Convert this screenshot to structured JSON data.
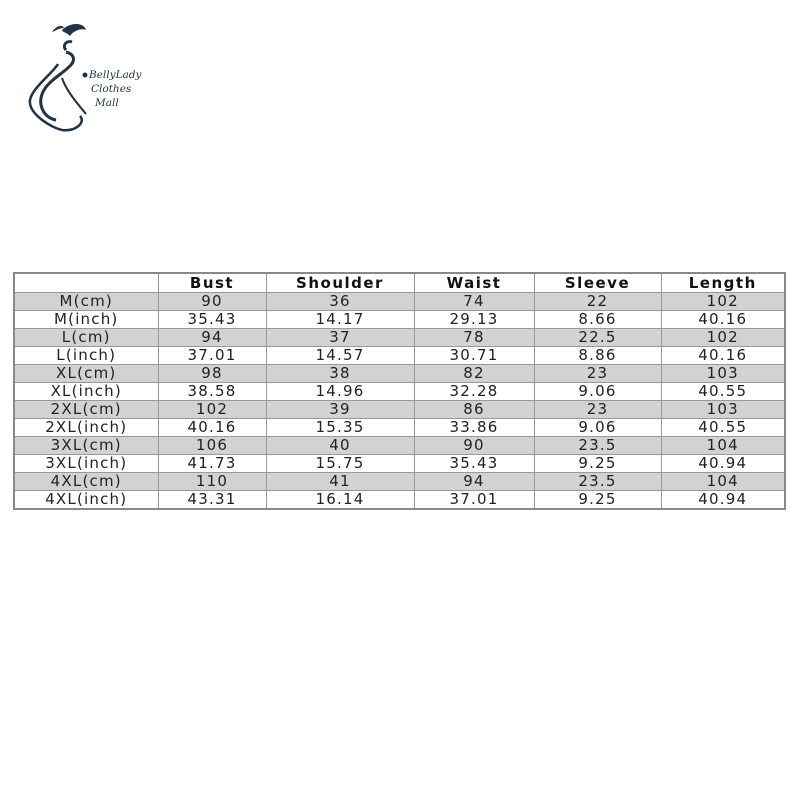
{
  "logo": {
    "line1": "BellyLady",
    "line2": "Clothes",
    "line3": "Mall",
    "color": "#1f3345"
  },
  "table": {
    "headers": [
      "",
      "Bust",
      "Shoulder",
      "Waist",
      "Sleeve",
      "Length"
    ],
    "rows": [
      [
        "M(cm)",
        "90",
        "36",
        "74",
        "22",
        "102"
      ],
      [
        "M(inch)",
        "35.43",
        "14.17",
        "29.13",
        "8.66",
        "40.16"
      ],
      [
        "L(cm)",
        "94",
        "37",
        "78",
        "22.5",
        "102"
      ],
      [
        "L(inch)",
        "37.01",
        "14.57",
        "30.71",
        "8.86",
        "40.16"
      ],
      [
        "XL(cm)",
        "98",
        "38",
        "82",
        "23",
        "103"
      ],
      [
        "XL(inch)",
        "38.58",
        "14.96",
        "32.28",
        "9.06",
        "40.55"
      ],
      [
        "2XL(cm)",
        "102",
        "39",
        "86",
        "23",
        "103"
      ],
      [
        "2XL(inch)",
        "40.16",
        "15.35",
        "33.86",
        "9.06",
        "40.55"
      ],
      [
        "3XL(cm)",
        "106",
        "40",
        "90",
        "23.5",
        "104"
      ],
      [
        "3XL(inch)",
        "41.73",
        "15.75",
        "35.43",
        "9.25",
        "40.94"
      ],
      [
        "4XL(cm)",
        "110",
        "41",
        "94",
        "23.5",
        "104"
      ],
      [
        "4XL(inch)",
        "43.31",
        "16.14",
        "37.01",
        "9.25",
        "40.94"
      ]
    ],
    "shaded_row_color": "#d2d2d2"
  }
}
